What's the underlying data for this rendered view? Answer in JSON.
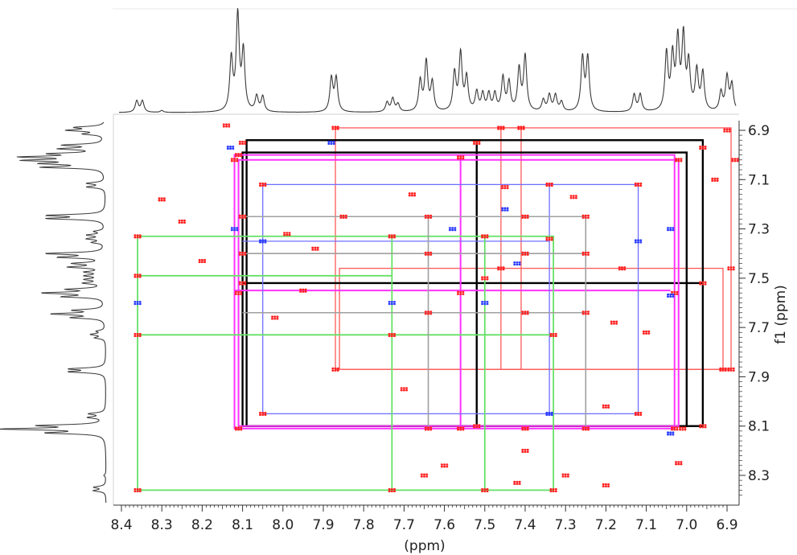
{
  "chart_data": {
    "type": "2D NMR correlation spectrum (COSY/TOCSY)",
    "xlabel": "(ppm)",
    "ylabel": "f1 (ppm)",
    "xlim": [
      8.42,
      6.85
    ],
    "ylim": [
      6.87,
      8.4
    ],
    "x_ticks": [
      "8.4",
      "8.3",
      "8.2",
      "8.1",
      "8.0",
      "7.9",
      "7.8",
      "7.7",
      "7.6",
      "7.5",
      "7.4",
      "7.3",
      "7.2",
      "7.1",
      "7.0",
      "6.9"
    ],
    "x_tick_values": [
      8.4,
      8.3,
      8.2,
      8.1,
      8.0,
      7.9,
      7.8,
      7.7,
      7.6,
      7.5,
      7.4,
      7.3,
      7.2,
      7.1,
      7.0,
      6.9
    ],
    "y_ticks": [
      "6.9",
      "7.1",
      "7.3",
      "7.5",
      "7.7",
      "7.9",
      "8.1",
      "8.3"
    ],
    "y_tick_values": [
      6.9,
      7.1,
      7.3,
      7.5,
      7.7,
      7.9,
      8.1,
      8.3
    ],
    "colors": {
      "crosspeak_positive": "#ff2020",
      "crosspeak_negative": "#2a3cff",
      "green": "#66e066",
      "pink": "#ff33ff",
      "black": "#000000",
      "red_line": "#ff5a5a",
      "blue_line": "#6e70ff",
      "gray": "#a0a0a0",
      "projection": "#333333"
    },
    "projection_peaks": [
      {
        "ppm": 8.362,
        "h": 0.12
      },
      {
        "ppm": 8.348,
        "h": 0.12
      },
      {
        "ppm": 8.3,
        "h": 0.02
      },
      {
        "ppm": 8.128,
        "h": 0.55
      },
      {
        "ppm": 8.112,
        "h": 1.0
      },
      {
        "ppm": 8.098,
        "h": 0.62
      },
      {
        "ppm": 8.065,
        "h": 0.16
      },
      {
        "ppm": 8.05,
        "h": 0.16
      },
      {
        "ppm": 7.88,
        "h": 0.35
      },
      {
        "ppm": 7.868,
        "h": 0.35
      },
      {
        "ppm": 7.742,
        "h": 0.1
      },
      {
        "ppm": 7.728,
        "h": 0.14
      },
      {
        "ppm": 7.715,
        "h": 0.08
      },
      {
        "ppm": 7.66,
        "h": 0.32
      },
      {
        "ppm": 7.645,
        "h": 0.52
      },
      {
        "ppm": 7.63,
        "h": 0.3
      },
      {
        "ppm": 7.575,
        "h": 0.4
      },
      {
        "ppm": 7.56,
        "h": 0.6
      },
      {
        "ppm": 7.545,
        "h": 0.35
      },
      {
        "ppm": 7.52,
        "h": 0.2
      },
      {
        "ppm": 7.505,
        "h": 0.18
      },
      {
        "ppm": 7.49,
        "h": 0.18
      },
      {
        "ppm": 7.475,
        "h": 0.18
      },
      {
        "ppm": 7.455,
        "h": 0.35
      },
      {
        "ppm": 7.44,
        "h": 0.3
      },
      {
        "ppm": 7.415,
        "h": 0.44
      },
      {
        "ppm": 7.4,
        "h": 0.58
      },
      {
        "ppm": 7.355,
        "h": 0.12
      },
      {
        "ppm": 7.34,
        "h": 0.17
      },
      {
        "ppm": 7.325,
        "h": 0.17
      },
      {
        "ppm": 7.31,
        "h": 0.1
      },
      {
        "ppm": 7.258,
        "h": 0.56
      },
      {
        "ppm": 7.245,
        "h": 0.56
      },
      {
        "ppm": 7.13,
        "h": 0.18
      },
      {
        "ppm": 7.115,
        "h": 0.18
      },
      {
        "ppm": 7.05,
        "h": 0.6
      },
      {
        "ppm": 7.035,
        "h": 0.55
      },
      {
        "ppm": 7.022,
        "h": 0.72
      },
      {
        "ppm": 7.008,
        "h": 0.76
      },
      {
        "ppm": 6.995,
        "h": 0.48
      },
      {
        "ppm": 6.975,
        "h": 0.42
      },
      {
        "ppm": 6.96,
        "h": 0.4
      },
      {
        "ppm": 6.915,
        "h": 0.2
      },
      {
        "ppm": 6.9,
        "h": 0.36
      },
      {
        "ppm": 6.888,
        "h": 0.28
      }
    ],
    "correlation_boxes": [
      {
        "color": "red_line",
        "x": [
          7.87,
          6.89
        ],
        "y": [
          6.89,
          7.87
        ]
      },
      {
        "color": "red_line",
        "x": [
          7.86,
          6.91
        ],
        "y": [
          7.46,
          7.87
        ]
      },
      {
        "color": "red_line",
        "x": [
          7.46,
          7.41
        ],
        "y": [
          6.89,
          7.87
        ]
      },
      {
        "color": "black",
        "x": [
          8.09,
          6.96
        ],
        "y": [
          6.94,
          8.1
        ]
      },
      {
        "color": "black",
        "x": [
          8.1,
          7.0
        ],
        "y": [
          6.99,
          8.1
        ]
      },
      {
        "color": "black",
        "x": [
          8.1,
          6.96
        ],
        "y": [
          7.52,
          7.52
        ]
      },
      {
        "color": "black",
        "x": [
          7.52,
          7.52
        ],
        "y": [
          6.94,
          8.1
        ]
      },
      {
        "color": "pink",
        "x": [
          8.12,
          7.03
        ],
        "y": [
          7.0,
          8.11
        ]
      },
      {
        "color": "pink",
        "x": [
          8.11,
          7.02
        ],
        "y": [
          7.02,
          8.1
        ]
      },
      {
        "color": "pink",
        "x": [
          8.12,
          7.04
        ],
        "y": [
          7.55,
          7.55
        ]
      },
      {
        "color": "pink",
        "x": [
          7.56,
          7.56
        ],
        "y": [
          7.01,
          8.11
        ]
      },
      {
        "color": "blue_line",
        "x": [
          8.05,
          7.12
        ],
        "y": [
          7.12,
          8.05
        ]
      },
      {
        "color": "blue_line",
        "x": [
          8.1,
          7.34
        ],
        "y": [
          7.35,
          7.35
        ]
      },
      {
        "color": "blue_line",
        "x": [
          7.34,
          7.34
        ],
        "y": [
          7.12,
          8.05
        ]
      },
      {
        "color": "green",
        "x": [
          8.36,
          7.33
        ],
        "y": [
          7.33,
          8.36
        ]
      },
      {
        "color": "green",
        "x": [
          8.36,
          7.73
        ],
        "y": [
          7.49,
          7.49
        ]
      },
      {
        "color": "green",
        "x": [
          8.36,
          7.33
        ],
        "y": [
          7.73,
          7.73
        ]
      },
      {
        "color": "green",
        "x": [
          7.73,
          7.73
        ],
        "y": [
          7.33,
          8.36
        ]
      },
      {
        "color": "green",
        "x": [
          7.5,
          7.5
        ],
        "y": [
          7.33,
          8.36
        ]
      },
      {
        "color": "gray",
        "x": [
          8.1,
          7.25
        ],
        "y": [
          7.25,
          7.25
        ]
      },
      {
        "color": "gray",
        "x": [
          8.1,
          7.25
        ],
        "y": [
          7.4,
          7.4
        ]
      },
      {
        "color": "gray",
        "x": [
          8.1,
          7.25
        ],
        "y": [
          7.64,
          7.64
        ]
      },
      {
        "color": "gray",
        "x": [
          7.64,
          7.64
        ],
        "y": [
          7.25,
          8.11
        ]
      },
      {
        "color": "gray",
        "x": [
          7.25,
          7.25
        ],
        "y": [
          7.25,
          8.11
        ]
      }
    ],
    "crosspeaks": [
      {
        "x": 8.11,
        "y": 8.11,
        "c": "r"
      },
      {
        "x": 7.87,
        "y": 7.87,
        "c": "r"
      },
      {
        "x": 7.64,
        "y": 7.64,
        "c": "r"
      },
      {
        "x": 7.56,
        "y": 7.56,
        "c": "r"
      },
      {
        "x": 7.4,
        "y": 7.4,
        "c": "r"
      },
      {
        "x": 7.25,
        "y": 7.25,
        "c": "r"
      },
      {
        "x": 7.12,
        "y": 7.12,
        "c": "r"
      },
      {
        "x": 7.02,
        "y": 7.02,
        "c": "r"
      },
      {
        "x": 6.9,
        "y": 6.9,
        "c": "r"
      },
      {
        "x": 8.36,
        "y": 8.36,
        "c": "r"
      },
      {
        "x": 7.73,
        "y": 7.73,
        "c": "r"
      },
      {
        "x": 7.34,
        "y": 7.34,
        "c": "r"
      },
      {
        "x": 7.5,
        "y": 7.5,
        "c": "r"
      },
      {
        "x": 7.46,
        "y": 7.46,
        "c": "r"
      },
      {
        "x": 8.05,
        "y": 8.05,
        "c": "r"
      },
      {
        "x": 7.87,
        "y": 6.89,
        "c": "r"
      },
      {
        "x": 6.89,
        "y": 7.87,
        "c": "r"
      },
      {
        "x": 7.46,
        "y": 6.89,
        "c": "r"
      },
      {
        "x": 6.89,
        "y": 7.46,
        "c": "r"
      },
      {
        "x": 7.41,
        "y": 6.89,
        "c": "r"
      },
      {
        "x": 6.91,
        "y": 7.87,
        "c": "r"
      },
      {
        "x": 8.1,
        "y": 6.95,
        "c": "r"
      },
      {
        "x": 6.96,
        "y": 8.1,
        "c": "r"
      },
      {
        "x": 8.1,
        "y": 7.52,
        "c": "r"
      },
      {
        "x": 7.52,
        "y": 8.1,
        "c": "r"
      },
      {
        "x": 7.52,
        "y": 6.95,
        "c": "r"
      },
      {
        "x": 6.96,
        "y": 7.52,
        "c": "r"
      },
      {
        "x": 8.11,
        "y": 7.0,
        "c": "r"
      },
      {
        "x": 7.01,
        "y": 8.11,
        "c": "r"
      },
      {
        "x": 8.12,
        "y": 7.02,
        "c": "r"
      },
      {
        "x": 7.03,
        "y": 8.11,
        "c": "r"
      },
      {
        "x": 7.56,
        "y": 7.01,
        "c": "r"
      },
      {
        "x": 7.03,
        "y": 7.56,
        "c": "r"
      },
      {
        "x": 8.11,
        "y": 7.56,
        "c": "r"
      },
      {
        "x": 7.56,
        "y": 8.11,
        "c": "r"
      },
      {
        "x": 8.05,
        "y": 7.12,
        "c": "r"
      },
      {
        "x": 7.12,
        "y": 8.05,
        "c": "r"
      },
      {
        "x": 7.34,
        "y": 7.12,
        "c": "r"
      },
      {
        "x": 7.12,
        "y": 7.35,
        "c": "b"
      },
      {
        "x": 8.05,
        "y": 7.35,
        "c": "b"
      },
      {
        "x": 7.34,
        "y": 8.05,
        "c": "b"
      },
      {
        "x": 8.36,
        "y": 7.33,
        "c": "r"
      },
      {
        "x": 7.33,
        "y": 8.36,
        "c": "r"
      },
      {
        "x": 7.73,
        "y": 7.33,
        "c": "r"
      },
      {
        "x": 7.33,
        "y": 7.73,
        "c": "r"
      },
      {
        "x": 8.36,
        "y": 7.49,
        "c": "r"
      },
      {
        "x": 7.5,
        "y": 7.33,
        "c": "r"
      },
      {
        "x": 8.36,
        "y": 7.73,
        "c": "r"
      },
      {
        "x": 7.73,
        "y": 8.36,
        "c": "r"
      },
      {
        "x": 7.5,
        "y": 8.36,
        "c": "r"
      },
      {
        "x": 7.64,
        "y": 7.25,
        "c": "r"
      },
      {
        "x": 7.25,
        "y": 7.64,
        "c": "r"
      },
      {
        "x": 7.64,
        "y": 7.4,
        "c": "r"
      },
      {
        "x": 7.4,
        "y": 7.64,
        "c": "r"
      },
      {
        "x": 7.4,
        "y": 7.25,
        "c": "r"
      },
      {
        "x": 7.25,
        "y": 7.4,
        "c": "r"
      },
      {
        "x": 8.1,
        "y": 7.25,
        "c": "r"
      },
      {
        "x": 7.64,
        "y": 8.11,
        "c": "r"
      },
      {
        "x": 7.25,
        "y": 8.11,
        "c": "r"
      },
      {
        "x": 7.4,
        "y": 8.11,
        "c": "r"
      },
      {
        "x": 8.1,
        "y": 7.4,
        "c": "r"
      },
      {
        "x": 7.58,
        "y": 7.3,
        "c": "b"
      },
      {
        "x": 7.45,
        "y": 7.22,
        "c": "b"
      },
      {
        "x": 8.12,
        "y": 7.3,
        "c": "b"
      },
      {
        "x": 8.36,
        "y": 7.6,
        "c": "b"
      },
      {
        "x": 7.04,
        "y": 7.3,
        "c": "b"
      },
      {
        "x": 7.04,
        "y": 7.57,
        "c": "b"
      },
      {
        "x": 7.73,
        "y": 7.6,
        "c": "b"
      },
      {
        "x": 7.5,
        "y": 7.6,
        "c": "b"
      },
      {
        "x": 7.88,
        "y": 6.95,
        "c": "b"
      },
      {
        "x": 8.13,
        "y": 6.97,
        "c": "b"
      },
      {
        "x": 7.42,
        "y": 7.44,
        "c": "b"
      },
      {
        "x": 7.04,
        "y": 8.13,
        "c": "b"
      },
      {
        "x": 8.3,
        "y": 7.18,
        "c": "r"
      },
      {
        "x": 8.2,
        "y": 7.43,
        "c": "r"
      },
      {
        "x": 8.25,
        "y": 7.27,
        "c": "r"
      },
      {
        "x": 7.99,
        "y": 7.32,
        "c": "r"
      },
      {
        "x": 7.92,
        "y": 7.38,
        "c": "r"
      },
      {
        "x": 7.95,
        "y": 7.55,
        "c": "r"
      },
      {
        "x": 7.7,
        "y": 7.95,
        "c": "r"
      },
      {
        "x": 7.6,
        "y": 8.26,
        "c": "r"
      },
      {
        "x": 7.65,
        "y": 8.3,
        "c": "r"
      },
      {
        "x": 7.4,
        "y": 8.2,
        "c": "r"
      },
      {
        "x": 7.42,
        "y": 8.33,
        "c": "r"
      },
      {
        "x": 7.2,
        "y": 8.34,
        "c": "r"
      },
      {
        "x": 7.3,
        "y": 8.3,
        "c": "r"
      },
      {
        "x": 7.02,
        "y": 8.25,
        "c": "r"
      },
      {
        "x": 6.96,
        "y": 6.97,
        "c": "r"
      },
      {
        "x": 6.93,
        "y": 7.1,
        "c": "r"
      },
      {
        "x": 6.88,
        "y": 7.02,
        "c": "r"
      },
      {
        "x": 7.18,
        "y": 7.68,
        "c": "r"
      },
      {
        "x": 7.1,
        "y": 7.72,
        "c": "r"
      },
      {
        "x": 7.16,
        "y": 7.46,
        "c": "r"
      },
      {
        "x": 8.02,
        "y": 7.66,
        "c": "r"
      },
      {
        "x": 7.85,
        "y": 7.25,
        "c": "r"
      },
      {
        "x": 7.68,
        "y": 7.16,
        "c": "r"
      },
      {
        "x": 7.45,
        "y": 7.13,
        "c": "r"
      },
      {
        "x": 7.28,
        "y": 7.17,
        "c": "r"
      },
      {
        "x": 7.2,
        "y": 8.02,
        "c": "r"
      },
      {
        "x": 8.14,
        "y": 6.88,
        "c": "r"
      }
    ]
  }
}
